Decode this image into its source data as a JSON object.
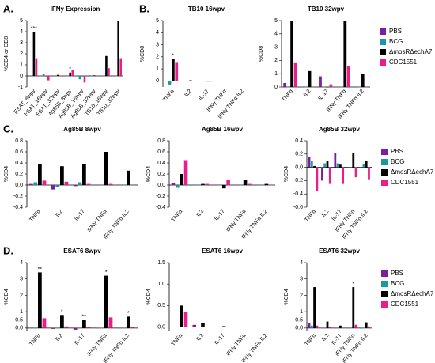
{
  "chart_data": [
    {
      "type": "bar",
      "label": "A.",
      "title": "IFNy Expression",
      "y_label": "%CD4 or CD8",
      "categories": [
        "ESAT_8wpv",
        "ESAT_16wpv",
        "ESAT_32wpv",
        "Ag85B_8wpv",
        "Ag85B_16wpv",
        "Ag85B_32wpv",
        "TB10_16wpv",
        "TB10_32wpv"
      ],
      "series": [
        {
          "name": "PBS",
          "color": "#7b1fa2",
          "values": [
            0,
            0,
            0,
            0,
            0,
            0.05,
            0,
            0
          ]
        },
        {
          "name": "BCG",
          "color": "#1a9aa0",
          "values": [
            0,
            0.2,
            0,
            0,
            -0.3,
            0,
            0,
            0
          ]
        },
        {
          "name": "ΔmosRΔechA7",
          "color": "#000000",
          "values": [
            4,
            0,
            0.1,
            0.3,
            0,
            0.05,
            1.8,
            5
          ]
        },
        {
          "name": "CDC1551",
          "color": "#e91e8c",
          "values": [
            1.6,
            -0.4,
            0,
            0.5,
            -0.6,
            0,
            0.7,
            1.6
          ]
        }
      ],
      "annotations": [
        "***",
        null,
        null,
        "*",
        null,
        null,
        null,
        null
      ],
      "ylim": [
        -1,
        5
      ],
      "yticks": [
        -1,
        0,
        1,
        2,
        3,
        4,
        5
      ]
    },
    {
      "type": "bar",
      "label": "B.",
      "title": "TB10 16wpv",
      "y_label": "%CD8",
      "categories": [
        "TNFα",
        "IL2",
        "IL-17",
        "IFNγ TNFα",
        "IFNγ TNFα IL2"
      ],
      "series": [
        {
          "name": "PBS",
          "color": "#7b1fa2",
          "values": [
            0,
            0,
            0,
            0,
            0
          ]
        },
        {
          "name": "BCG",
          "color": "#1a9aa0",
          "values": [
            -0.3,
            0,
            0,
            0,
            0
          ]
        },
        {
          "name": "ΔmosRΔechA7",
          "color": "#000000",
          "values": [
            1.8,
            0.05,
            -0.05,
            0,
            0
          ]
        },
        {
          "name": "CDC1551",
          "color": "#e91e8c",
          "values": [
            1.5,
            0,
            -0.05,
            0,
            0
          ]
        }
      ],
      "annotations": [
        "*",
        null,
        null,
        null,
        null
      ],
      "ylim": [
        -0.5,
        5
      ],
      "yticks": [
        0,
        1,
        2,
        3,
        4,
        5
      ]
    },
    {
      "type": "bar",
      "title": "TB10 32wpv",
      "y_label": "%CD8",
      "categories": [
        "TNFα",
        "IL2",
        "IL-17",
        "IFNγ TNFα",
        "IFNγ TNFα IL2"
      ],
      "series": [
        {
          "name": "PBS",
          "color": "#7b1fa2",
          "values": [
            0.3,
            0,
            0.8,
            0,
            0
          ]
        },
        {
          "name": "BCG",
          "color": "#1a9aa0",
          "values": [
            0,
            0,
            0,
            0,
            0
          ]
        },
        {
          "name": "ΔmosRΔechA7",
          "color": "#000000",
          "values": [
            5,
            1.2,
            0,
            5,
            1
          ]
        },
        {
          "name": "CDC1551",
          "color": "#e91e8c",
          "values": [
            1.8,
            0,
            0.2,
            1.6,
            0
          ]
        }
      ],
      "annotations": [
        null,
        null,
        null,
        null,
        null
      ],
      "ylim": [
        0,
        5
      ],
      "yticks": [
        0,
        1,
        2,
        3,
        4,
        5
      ],
      "legend": "right"
    },
    {
      "type": "bar",
      "label": "C.",
      "title": "Ag85B 8wpv",
      "y_label": "%CD4",
      "categories": [
        "TNFα",
        "IL2",
        "IL-17",
        "IFNγ TNFα",
        "IFNγ TNFα IL2"
      ],
      "series": [
        {
          "name": "PBS",
          "color": "#7b1fa2",
          "values": [
            0.02,
            -0.08,
            -0.02,
            0,
            0
          ]
        },
        {
          "name": "BCG",
          "color": "#1a9aa0",
          "values": [
            0.05,
            -0.03,
            0.05,
            0,
            0
          ]
        },
        {
          "name": "ΔmosRΔechA7",
          "color": "#000000",
          "values": [
            0.38,
            0.34,
            0.38,
            0.6,
            0.26
          ]
        },
        {
          "name": "CDC1551",
          "color": "#e91e8c",
          "values": [
            0.08,
            0.06,
            0.02,
            0.02,
            0
          ]
        }
      ],
      "annotations": [
        null,
        null,
        null,
        null,
        null
      ],
      "ylim": [
        -0.4,
        0.8
      ],
      "yticks": [
        -0.4,
        -0.2,
        {
          "value": 0,
          "label": "0.0"
        },
        0.2,
        0.4,
        0.6,
        0.8
      ]
    },
    {
      "type": "bar",
      "title": "Ag85B 16wpv",
      "y_label": "%CD4",
      "categories": [
        "TNFα",
        "IL2",
        "IL-17",
        "IFNγ TNFα",
        "IFNγ TNFα IL2"
      ],
      "series": [
        {
          "name": "PBS",
          "color": "#7b1fa2",
          "values": [
            0.03,
            0,
            0,
            0,
            0
          ]
        },
        {
          "name": "BCG",
          "color": "#1a9aa0",
          "values": [
            -0.05,
            0,
            0,
            0,
            0
          ]
        },
        {
          "name": "ΔmosRΔechA7",
          "color": "#000000",
          "values": [
            0.2,
            0.02,
            -0.06,
            0.1,
            0.02
          ]
        },
        {
          "name": "CDC1551",
          "color": "#e91e8c",
          "values": [
            0.45,
            0.02,
            0.1,
            0.02,
            0
          ]
        }
      ],
      "annotations": [
        null,
        null,
        null,
        null,
        null
      ],
      "ylim": [
        -0.4,
        0.8
      ],
      "yticks": [
        -0.4,
        -0.2,
        {
          "value": 0,
          "label": "0.0"
        },
        0.2,
        0.4,
        0.6,
        0.8
      ]
    },
    {
      "type": "bar",
      "title": "Ag85B 32wpv",
      "y_label": "%CD4",
      "categories": [
        "TNFα",
        "IL2",
        "IL-17",
        "IFNγ TNFα",
        "IFNγ TNFα IL2"
      ],
      "series": [
        {
          "name": "PBS",
          "color": "#7b1fa2",
          "values": [
            0.16,
            -0.2,
            0.22,
            0,
            0
          ]
        },
        {
          "name": "BCG",
          "color": "#1a9aa0",
          "values": [
            0.1,
            0.06,
            0.06,
            0,
            0.05
          ]
        },
        {
          "name": "ΔmosRΔechA7",
          "color": "#000000",
          "values": [
            0.02,
            0.1,
            0.04,
            0.22,
            0.1
          ]
        },
        {
          "name": "CDC1551",
          "color": "#e91e8c",
          "values": [
            -0.35,
            -0.25,
            -0.25,
            -0.15,
            -0.18
          ]
        }
      ],
      "annotations": [
        null,
        null,
        null,
        null,
        null
      ],
      "ylim": [
        -0.6,
        0.4
      ],
      "yticks": [
        -0.6,
        -0.4,
        -0.2,
        {
          "value": 0,
          "label": "0.0"
        },
        0.2,
        0.4
      ],
      "legend": "right"
    },
    {
      "type": "bar",
      "label": "D.",
      "title": "ESAT6 8wpv",
      "y_label": "%CD4",
      "categories": [
        "TNFα",
        "IL2",
        "IL-17",
        "IFNγ TNFα",
        "IFNγ TNFα IL2"
      ],
      "series": [
        {
          "name": "PBS",
          "color": "#7b1fa2",
          "values": [
            0,
            -0.05,
            -0.1,
            0,
            0
          ]
        },
        {
          "name": "BCG",
          "color": "#1a9aa0",
          "values": [
            0,
            0,
            0,
            0,
            0
          ]
        },
        {
          "name": "ΔmosRΔechA7",
          "color": "#000000",
          "values": [
            3.4,
            0.8,
            0.5,
            3.2,
            0.7
          ]
        },
        {
          "name": "CDC1551",
          "color": "#e91e8c",
          "values": [
            0.6,
            0.1,
            0.05,
            0.65,
            0.05
          ]
        }
      ],
      "annotations": [
        "**",
        "*",
        "**",
        "*",
        "*"
      ],
      "ylim": [
        -0.2,
        4
      ],
      "yticks": [
        {
          "value": 0,
          "label": "0.0"
        },
        0.5,
        1,
        2,
        3,
        4
      ]
    },
    {
      "type": "bar",
      "title": "ESAT6 16wpv",
      "y_label": "%CD4",
      "categories": [
        "TNFα",
        "IL2",
        "IL-17",
        "IFNγ TNFα",
        "IFNγ TNFα IL2"
      ],
      "series": [
        {
          "name": "PBS",
          "color": "#7b1fa2",
          "values": [
            0,
            0.05,
            0,
            0,
            0
          ]
        },
        {
          "name": "BCG",
          "color": "#1a9aa0",
          "values": [
            0,
            0,
            0,
            0,
            0
          ]
        },
        {
          "name": "ΔmosRΔechA7",
          "color": "#000000",
          "values": [
            0.5,
            0.1,
            0.02,
            0,
            0
          ]
        },
        {
          "name": "CDC1551",
          "color": "#e91e8c",
          "values": [
            0.35,
            0,
            0,
            0,
            0
          ]
        }
      ],
      "annotations": [
        null,
        null,
        null,
        null,
        null
      ],
      "ylim": [
        -0.1,
        1.5
      ],
      "yticks": [
        {
          "value": 0,
          "label": "0.0"
        },
        0.5,
        {
          "value": 1,
          "label": "1.0"
        },
        1.5
      ]
    },
    {
      "type": "bar",
      "title": "ESAT6 32wpv",
      "y_label": "%CD4",
      "categories": [
        "TNFα",
        "IL2",
        "IL-17",
        "IFNγ TNFα",
        "IFNγ TNFα IL2"
      ],
      "series": [
        {
          "name": "PBS",
          "color": "#7b1fa2",
          "values": [
            0.3,
            0,
            0,
            0,
            0
          ]
        },
        {
          "name": "BCG",
          "color": "#1a9aa0",
          "values": [
            0.15,
            0,
            0,
            0,
            0
          ]
        },
        {
          "name": "ΔmosRΔechA7",
          "color": "#000000",
          "values": [
            2.5,
            0.4,
            0.15,
            2.5,
            0.35
          ]
        },
        {
          "name": "CDC1551",
          "color": "#e91e8c",
          "values": [
            0.15,
            0.05,
            0,
            0.2,
            0.1
          ]
        }
      ],
      "annotations": [
        null,
        null,
        null,
        "*",
        null
      ],
      "ylim": [
        -0.2,
        4
      ],
      "yticks": [
        {
          "value": 0,
          "label": "0.0"
        },
        0.5,
        1,
        2,
        3,
        4
      ],
      "legend": "right"
    }
  ]
}
